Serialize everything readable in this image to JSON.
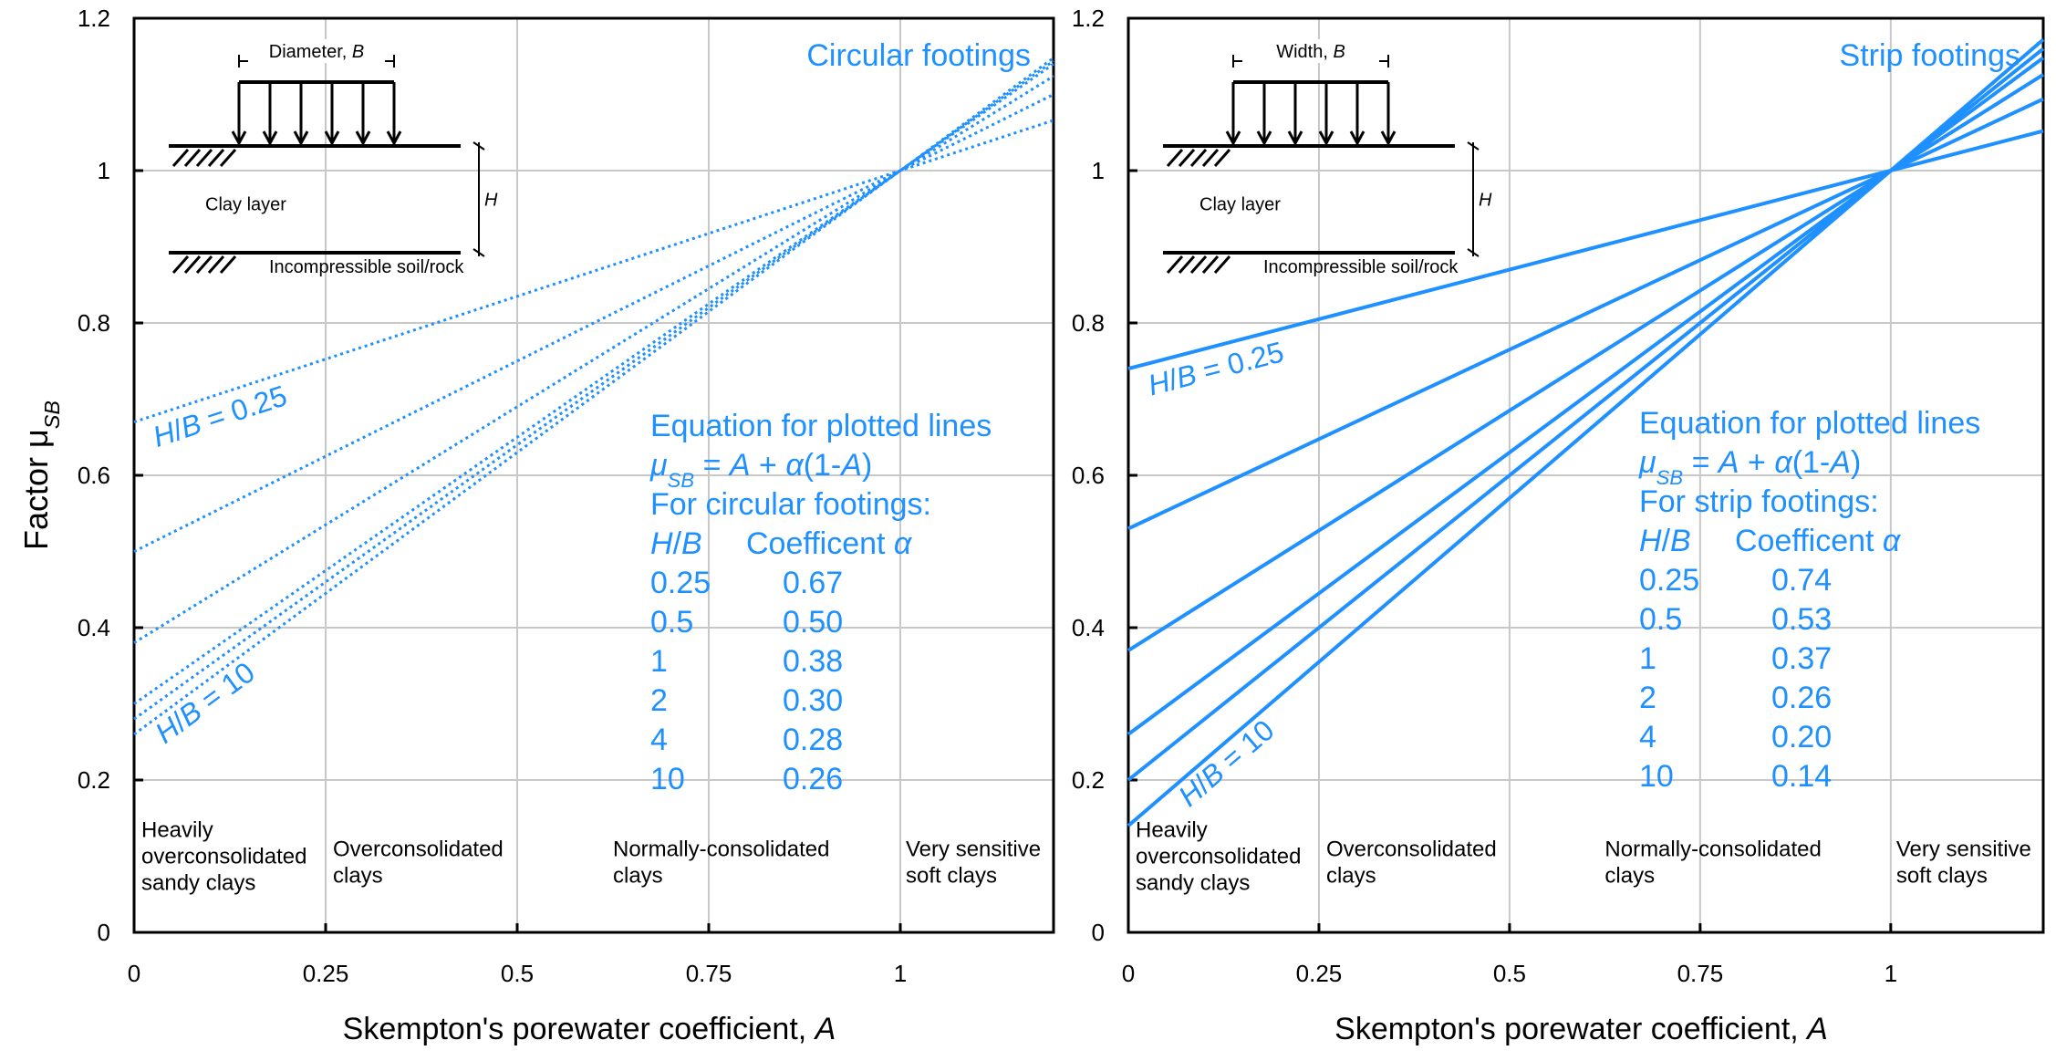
{
  "colors": {
    "line": "#1e90ff",
    "grid": "#c8c8c8",
    "frame": "#000000"
  },
  "chart_data": [
    {
      "type": "line",
      "title": "Circular footings",
      "line_style": "dotted",
      "xlabel": "Skempton's porewater coefficient, A",
      "ylabel": "Factor μSB",
      "ylabel_main": "Factor μ",
      "ylabel_sub": "SB",
      "xlim": [
        0,
        1.2
      ],
      "ylim": [
        0,
        1.2
      ],
      "x_ticks": [
        0,
        0.25,
        0.5,
        0.75,
        1
      ],
      "x_tick_labels": [
        "0",
        "0.25",
        "0.5",
        "0.75",
        "1"
      ],
      "y_ticks": [
        0,
        0.2,
        0.4,
        0.6,
        0.8,
        1,
        1.2
      ],
      "y_tick_labels": [
        "0",
        "0.2",
        "0.4",
        "0.6",
        "0.8",
        "1",
        "1.2"
      ],
      "grid": true,
      "series": [
        {
          "name": "0.25",
          "alpha": 0.67,
          "x": [
            0,
            1.2
          ],
          "y": [
            0.67,
            1.066
          ]
        },
        {
          "name": "0.5",
          "alpha": 0.5,
          "x": [
            0,
            1.2
          ],
          "y": [
            0.5,
            1.1
          ]
        },
        {
          "name": "1",
          "alpha": 0.38,
          "x": [
            0,
            1.2
          ],
          "y": [
            0.38,
            1.124
          ]
        },
        {
          "name": "2",
          "alpha": 0.3,
          "x": [
            0,
            1.2
          ],
          "y": [
            0.3,
            1.14
          ]
        },
        {
          "name": "4",
          "alpha": 0.28,
          "x": [
            0,
            1.2
          ],
          "y": [
            0.28,
            1.144
          ]
        },
        {
          "name": "10",
          "alpha": 0.26,
          "x": [
            0,
            1.2
          ],
          "y": [
            0.26,
            1.148
          ]
        }
      ],
      "line_labels": [
        "H/B = 0.25",
        "H/B = 10"
      ],
      "equation": {
        "line1": "Equation for plotted lines",
        "line2": "μSB = A + α(1-A)",
        "line3": "For circular footings:",
        "col1_header": "H/B",
        "col2_header": "Coefficent α",
        "rows": [
          [
            "0.25",
            "0.67"
          ],
          [
            "0.5",
            "0.50"
          ],
          [
            "1",
            "0.38"
          ],
          [
            "2",
            "0.30"
          ],
          [
            "4",
            "0.28"
          ],
          [
            "10",
            "0.26"
          ]
        ]
      },
      "categories_text": [
        [
          "Heavily",
          "overconsolidated",
          "sandy clays"
        ],
        [
          "Overconsolidated",
          "clays"
        ],
        [
          "Normally-consolidated",
          "clays"
        ],
        [
          "Very sensitive",
          "soft clays"
        ]
      ],
      "inset": {
        "dimension_label": "Diameter, B",
        "layer_label": "Clay layer",
        "base_label": "Incompressible soil/rock",
        "h_label": "H"
      }
    },
    {
      "type": "line",
      "title": "Strip footings",
      "line_style": "solid",
      "xlabel": "Skempton's porewater coefficient, A",
      "xlim": [
        0,
        1.2
      ],
      "ylim": [
        0,
        1.2
      ],
      "x_ticks": [
        0,
        0.25,
        0.5,
        0.75,
        1
      ],
      "x_tick_labels": [
        "0",
        "0.25",
        "0.5",
        "0.75",
        "1"
      ],
      "y_ticks": [
        0,
        0.2,
        0.4,
        0.6,
        0.8,
        1,
        1.2
      ],
      "y_tick_labels": [
        "0",
        "0.2",
        "0.4",
        "0.6",
        "0.8",
        "1",
        "1.2"
      ],
      "grid": true,
      "series": [
        {
          "name": "0.25",
          "alpha": 0.74,
          "x": [
            0,
            1.2
          ],
          "y": [
            0.74,
            1.052
          ]
        },
        {
          "name": "0.5",
          "alpha": 0.53,
          "x": [
            0,
            1.2
          ],
          "y": [
            0.53,
            1.094
          ]
        },
        {
          "name": "1",
          "alpha": 0.37,
          "x": [
            0,
            1.2
          ],
          "y": [
            0.37,
            1.126
          ]
        },
        {
          "name": "2",
          "alpha": 0.26,
          "x": [
            0,
            1.2
          ],
          "y": [
            0.26,
            1.148
          ]
        },
        {
          "name": "4",
          "alpha": 0.2,
          "x": [
            0,
            1.2
          ],
          "y": [
            0.2,
            1.16
          ]
        },
        {
          "name": "10",
          "alpha": 0.14,
          "x": [
            0,
            1.2
          ],
          "y": [
            0.14,
            1.172
          ]
        }
      ],
      "line_labels": [
        "H/B = 0.25",
        "H/B = 10"
      ],
      "equation": {
        "line1": "Equation for plotted lines",
        "line2": "μSB = A + α(1-A)",
        "line3": "For strip footings:",
        "col1_header": "H/B",
        "col2_header": "Coefficent α",
        "rows": [
          [
            "0.25",
            "0.74"
          ],
          [
            "0.5",
            "0.53"
          ],
          [
            "1",
            "0.37"
          ],
          [
            "2",
            "0.26"
          ],
          [
            "4",
            "0.20"
          ],
          [
            "10",
            "0.14"
          ]
        ]
      },
      "categories_text": [
        [
          "Heavily",
          "overconsolidated",
          "sandy clays"
        ],
        [
          "Overconsolidated",
          "clays"
        ],
        [
          "Normally-consolidated",
          "clays"
        ],
        [
          "Very sensitive",
          "soft clays"
        ]
      ],
      "inset": {
        "dimension_label": "Width, B",
        "layer_label": "Clay layer",
        "base_label": "Incompressible soil/rock",
        "h_label": "H"
      }
    }
  ]
}
